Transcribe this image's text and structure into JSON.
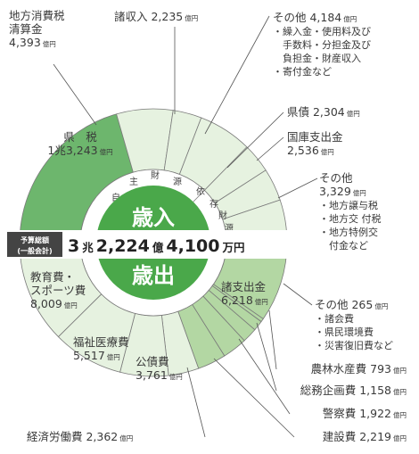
{
  "chart_data": {
    "type": "pie",
    "center": {
      "top": "歳入",
      "bottom": "歳出"
    },
    "total": {
      "tag_line1": "予算総額",
      "tag_line2": "(一般会計)",
      "cho": "3",
      "cho_unit": "兆",
      "oku": "2,224",
      "oku_unit": "億",
      "man": "4,100",
      "man_unit": "万円"
    },
    "ring_labels": {
      "own_revenue": [
        "自",
        "主",
        "財",
        "源"
      ],
      "dependent_revenue": [
        "依",
        "存",
        "財",
        "源"
      ]
    },
    "revenue": [
      {
        "name": "県税",
        "value": 13243,
        "lines": [
          "県　税",
          "1兆3,243"
        ],
        "unit": "億円",
        "color": "#6db66d"
      },
      {
        "name": "地方消費税清算金",
        "value": 4393,
        "lines": [
          "地方消費税",
          "清算金",
          "4,393"
        ],
        "unit": "億円",
        "color": "#e6f2e0"
      },
      {
        "name": "諸収入",
        "value": 2235,
        "lines": [
          "諸収入 2,235"
        ],
        "unit": "億円",
        "color": "#e6f2e0"
      },
      {
        "name": "その他",
        "value": 4184,
        "lines": [
          "その他 4,184",
          "・繰入金・使用料及び",
          "　手数料・分担金及び",
          "　負担金・財産収入",
          "・寄付金など"
        ],
        "unit": "億円",
        "color": "#e6f2e0"
      },
      {
        "name": "県債",
        "value": 2304,
        "lines": [
          "県債 2,304"
        ],
        "unit": "億円",
        "color": "#e6f2e0"
      },
      {
        "name": "国庫支出金",
        "value": 2536,
        "lines": [
          "国庫支出金",
          "2,536"
        ],
        "unit": "億円",
        "color": "#e6f2e0"
      },
      {
        "name": "その他",
        "value": 3329,
        "lines": [
          "その他",
          "3,329",
          "・地方譲与税",
          "・地方交 付税",
          "・地方特例交",
          "　付金など"
        ],
        "unit": "億円",
        "color": "#e6f2e0"
      }
    ],
    "expenditure": [
      {
        "name": "諸支出金",
        "value": 6218,
        "lines": [
          "諸支出金",
          "6,218"
        ],
        "unit": "億円",
        "color": "#b3d7a3"
      },
      {
        "name": "その他",
        "value": 265,
        "lines": [
          "その他 265",
          "・諸会費",
          "・県民環境費",
          "・災害復旧費など"
        ],
        "unit": "億円",
        "color": "#b3d7a3"
      },
      {
        "name": "農林水産費",
        "value": 793,
        "lines": [
          "農林水産費 793"
        ],
        "unit": "億円",
        "color": "#b3d7a3"
      },
      {
        "name": "総務企画費",
        "value": 1158,
        "lines": [
          "総務企画費 1,158"
        ],
        "unit": "億円",
        "color": "#b3d7a3"
      },
      {
        "name": "警察費",
        "value": 1922,
        "lines": [
          "警察費 1,922"
        ],
        "unit": "億円",
        "color": "#b3d7a3"
      },
      {
        "name": "建設費",
        "value": 2219,
        "lines": [
          "建設費 2,219"
        ],
        "unit": "億円",
        "color": "#b3d7a3"
      },
      {
        "name": "経済労働費",
        "value": 2362,
        "lines": [
          "経済労働費 2,362"
        ],
        "unit": "億円",
        "color": "#e6f2e0"
      },
      {
        "name": "公債費",
        "value": 3761,
        "lines": [
          "公債費",
          "3,761"
        ],
        "unit": "億円",
        "color": "#e6f2e0"
      },
      {
        "name": "福祉医療費",
        "value": 5517,
        "lines": [
          "福祉医療費",
          "5,517"
        ],
        "unit": "億円",
        "color": "#e6f2e0"
      },
      {
        "name": "教育費・スポーツ費",
        "value": 8009,
        "lines": [
          "教育費・",
          "スポーツ費",
          "8,009"
        ],
        "unit": "億円",
        "color": "#e6f2e0"
      }
    ],
    "colors": {
      "accent": "#4aa84a",
      "dark_tag": "#444444",
      "divider": "#7a7a7a"
    }
  }
}
